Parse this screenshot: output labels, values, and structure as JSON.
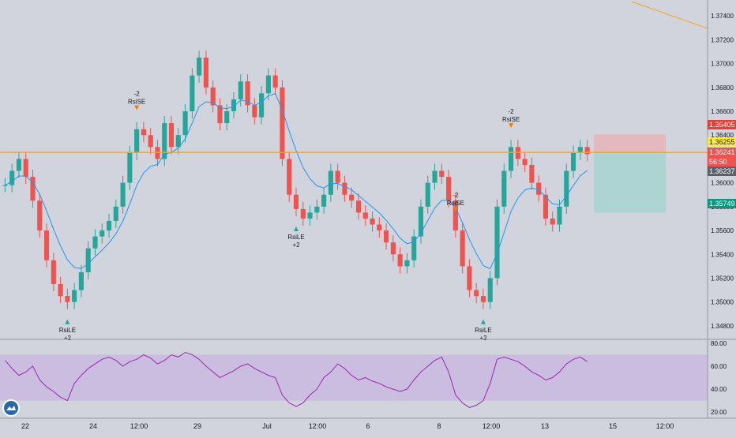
{
  "price_axis": {
    "ticks": [
      "1.37400",
      "1.37200",
      "1.37000",
      "1.36800",
      "1.36600",
      "1.36400",
      "1.36200",
      "1.36000",
      "1.35800",
      "1.35600",
      "1.35400",
      "1.35200",
      "1.35000",
      "1.34800"
    ],
    "range": [
      1.347,
      1.375
    ]
  },
  "price_tags": {
    "stop_loss": {
      "value": "1.36405",
      "color": "#e0413b"
    },
    "horizontal_line": {
      "value": "1.36255",
      "color": "#ffeb3b"
    },
    "last_price": {
      "value": "1.36241",
      "color": "#ef5350"
    },
    "countdown": {
      "value": "56:50",
      "color": "#ef5350"
    },
    "bid": {
      "value": "1.36237",
      "color": "#5d606b"
    },
    "take_profit": {
      "value": "1.35749",
      "color": "#089981"
    }
  },
  "rsi_axis": {
    "ticks": [
      "80.00",
      "60.00",
      "40.00",
      "20.00"
    ],
    "range": [
      16,
      82
    ],
    "band": [
      30,
      70
    ]
  },
  "time_axis": {
    "labels": [
      "22",
      "24",
      "12:00",
      "29",
      "Jul",
      "12:00",
      "6",
      "8",
      "12:00",
      "13",
      "15",
      "12:00"
    ]
  },
  "signals": {
    "short": [
      {
        "lines": [
          "-2",
          "RsiSE"
        ]
      },
      {
        "lines": [
          "-2",
          "RsiSE"
        ]
      },
      {
        "lines": [
          "-2",
          "RsiSE"
        ]
      }
    ],
    "long": [
      {
        "lines": [
          "RsiLE",
          "+2"
        ]
      },
      {
        "lines": [
          "RsiLE",
          "+2"
        ]
      },
      {
        "lines": [
          "RsiLE",
          "+2"
        ]
      }
    ]
  },
  "colors": {
    "up": "#26a69a",
    "down": "#ef5350",
    "ema": "#2196f3",
    "rsi": "#9c27b0",
    "band": "#c9b3e0",
    "hline": "#f7a51d",
    "trend": "#f7a51d",
    "bg": "#d1d4dc"
  },
  "chart_data": {
    "type": "candlestick",
    "instrument_scale": "price",
    "price_range": [
      1.347,
      1.375
    ],
    "horizontal_line_price": 1.36255,
    "position": {
      "entry": 1.36255,
      "stop": 1.36405,
      "target": 1.35749
    },
    "trend_line": [
      {
        "price": 1.375
      },
      {
        "price": 1.372
      }
    ],
    "close_series": [
      1.3598,
      1.361,
      1.362,
      1.3605,
      1.3585,
      1.356,
      1.3535,
      1.3515,
      1.3505,
      1.35,
      1.351,
      1.3525,
      1.3545,
      1.3555,
      1.356,
      1.3568,
      1.358,
      1.36,
      1.3625,
      1.3645,
      1.364,
      1.363,
      1.362,
      1.365,
      1.363,
      1.364,
      1.366,
      1.369,
      1.3705,
      1.368,
      1.3665,
      1.365,
      1.366,
      1.367,
      1.3685,
      1.3665,
      1.3655,
      1.3675,
      1.369,
      1.368,
      1.362,
      1.359,
      1.3578,
      1.357,
      1.3575,
      1.358,
      1.359,
      1.361,
      1.36,
      1.359,
      1.3585,
      1.3575,
      1.357,
      1.3565,
      1.356,
      1.355,
      1.354,
      1.353,
      1.3535,
      1.3555,
      1.358,
      1.36,
      1.361,
      1.3605,
      1.3585,
      1.356,
      1.353,
      1.351,
      1.3505,
      1.35,
      1.352,
      1.358,
      1.361,
      1.363,
      1.362,
      1.3615,
      1.36,
      1.359,
      1.357,
      1.3565,
      1.358,
      1.361,
      1.3625,
      1.363,
      1.3624
    ],
    "rsi_series": [
      65,
      58,
      52,
      55,
      60,
      48,
      42,
      38,
      33,
      30,
      45,
      52,
      58,
      62,
      66,
      68,
      65,
      60,
      64,
      66,
      70,
      67,
      62,
      65,
      70,
      68,
      72,
      70,
      66,
      60,
      55,
      50,
      53,
      56,
      60,
      62,
      58,
      55,
      52,
      50,
      35,
      28,
      25,
      28,
      35,
      40,
      50,
      55,
      62,
      58,
      52,
      48,
      50,
      47,
      45,
      42,
      40,
      38,
      40,
      48,
      55,
      60,
      65,
      68,
      55,
      35,
      28,
      24,
      26,
      30,
      45,
      66,
      68,
      66,
      64,
      60,
      55,
      52,
      48,
      50,
      55,
      62,
      66,
      68,
      64
    ]
  }
}
